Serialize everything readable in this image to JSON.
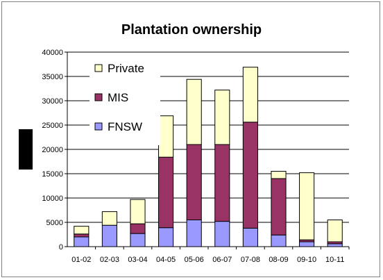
{
  "chart_data": {
    "type": "bar",
    "stacked": true,
    "title": "Plantation ownership",
    "xlabel": "",
    "ylabel": "",
    "categories": [
      "01-02",
      "02-03",
      "03-04",
      "04-05",
      "05-06",
      "06-07",
      "07-08",
      "08-09",
      "09-10",
      "10-11"
    ],
    "ylim": [
      0,
      40000
    ],
    "yticks": [
      0,
      5000,
      10000,
      15000,
      20000,
      25000,
      30000,
      35000,
      40000
    ],
    "grid": true,
    "legend_position": "top-left",
    "series": [
      {
        "name": "FNSW",
        "color": "#9999ff",
        "values": [
          2000,
          4400,
          2700,
          3900,
          5500,
          5200,
          3800,
          2400,
          1000,
          600
        ]
      },
      {
        "name": "MIS",
        "color": "#993366",
        "values": [
          600,
          0,
          2000,
          14500,
          15500,
          15800,
          21800,
          11600,
          400,
          400
        ]
      },
      {
        "name": "Private",
        "color": "#ffffcc",
        "values": [
          1600,
          2800,
          5000,
          8500,
          13400,
          11200,
          11300,
          1500,
          13800,
          4500
        ]
      }
    ],
    "legend_order": [
      "Private",
      "MIS",
      "FNSW"
    ]
  }
}
